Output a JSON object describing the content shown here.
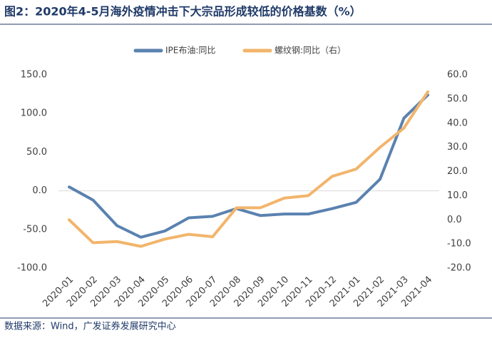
{
  "chart_data": {
    "type": "line",
    "title": "图2：2020年4-5月海外疫情冲击下大宗品形成较低的价格基数（%）",
    "source": "数据来源：Wind，广发证券发展研究中心",
    "categories": [
      "2020-01",
      "2020-02",
      "2020-03",
      "2020-04",
      "2020-05",
      "2020-06",
      "2020-07",
      "2020-08",
      "2020-09",
      "2020-10",
      "2020-11",
      "2020-12",
      "2021-01",
      "2021-02",
      "2021-03",
      "2021-04"
    ],
    "series": [
      {
        "name": "IPE布油:同比",
        "color": "#5a82b0",
        "values": [
          5,
          -12,
          -45,
          -60,
          -52,
          -35,
          -33,
          -23,
          -32,
          -30,
          -30,
          -23,
          -15,
          15,
          94,
          124
        ]
      },
      {
        "name": "螺纹钢:同比（右）",
        "color": "#f2b56b",
        "axis": "y2",
        "values": [
          0,
          -9.5,
          -9,
          -11,
          -8,
          -6,
          -7,
          5,
          5,
          9,
          10,
          18,
          21,
          30,
          38,
          53
        ]
      }
    ],
    "ylim": [
      -100,
      150
    ],
    "yticks": [
      {
        "value": -100,
        "label": "-100.0"
      },
      {
        "value": -50,
        "label": "-50.0"
      },
      {
        "value": 0,
        "label": "0.0"
      },
      {
        "value": 50,
        "label": "50.0"
      },
      {
        "value": 100,
        "label": "100.0"
      },
      {
        "value": 150,
        "label": "150.0"
      }
    ],
    "y2lim": [
      -20,
      60
    ],
    "y2ticks": [
      {
        "value": -20,
        "label": "-20.0"
      },
      {
        "value": -10,
        "label": "-10.0"
      },
      {
        "value": 0,
        "label": "0.0"
      },
      {
        "value": 10,
        "label": "10.0"
      },
      {
        "value": 20,
        "label": "20.0"
      },
      {
        "value": 30,
        "label": "30.0"
      },
      {
        "value": 40,
        "label": "40.0"
      },
      {
        "value": 50,
        "label": "50.0"
      },
      {
        "value": 60,
        "label": "60.0"
      }
    ],
    "legend": "top"
  }
}
